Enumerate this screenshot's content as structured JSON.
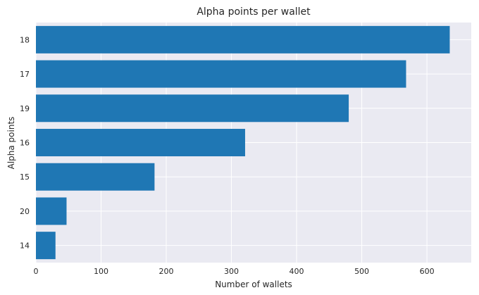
{
  "chart_data": {
    "type": "bar",
    "orientation": "horizontal",
    "title": "Alpha points per wallet",
    "xlabel": "Number of wallets",
    "ylabel": "Alpha points",
    "categories": [
      "18",
      "17",
      "19",
      "16",
      "15",
      "20",
      "14"
    ],
    "values": [
      635,
      568,
      480,
      321,
      182,
      47,
      30
    ],
    "xlim": [
      0,
      668
    ],
    "xticks": [
      0,
      100,
      200,
      300,
      400,
      500,
      600
    ],
    "grid": true,
    "legend": "none",
    "colors": {
      "bar": "#1f77b4",
      "plot_background": "#eaeaf2",
      "grid": "#ffffff"
    }
  }
}
